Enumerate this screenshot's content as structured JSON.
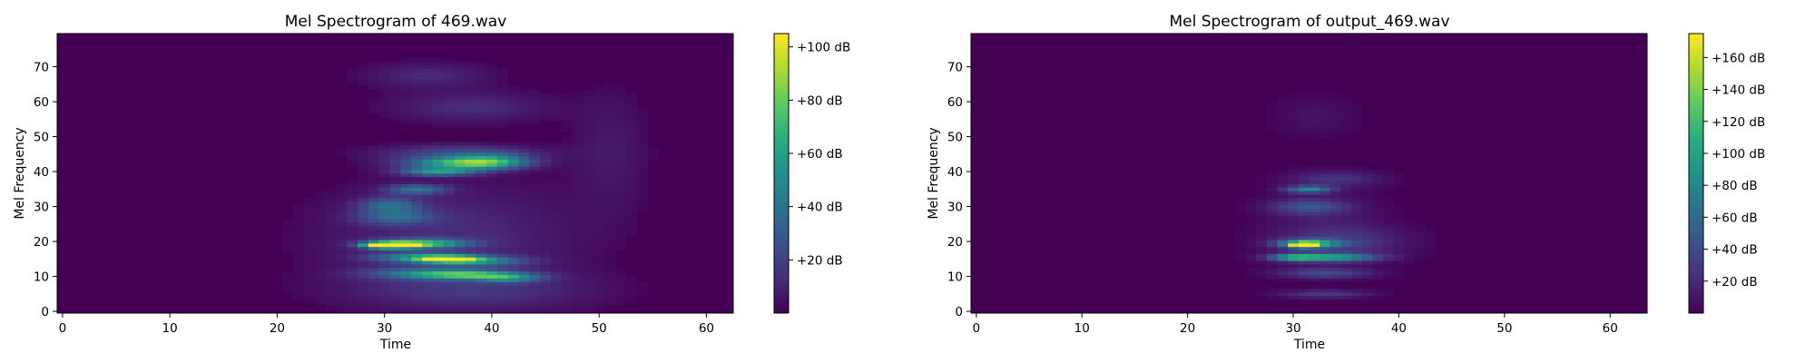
{
  "chart_data": [
    {
      "type": "heatmap",
      "title": "Mel Spectrogram of 469.wav",
      "xlabel": "Time",
      "ylabel": "Mel Frequency",
      "xlim": [
        -0.5,
        62.5
      ],
      "ylim": [
        -0.5,
        79.5
      ],
      "xticks": [
        "0",
        "10",
        "20",
        "30",
        "40",
        "50",
        "60"
      ],
      "yticks": [
        "0",
        "10",
        "20",
        "30",
        "40",
        "50",
        "60",
        "70"
      ],
      "colorbar": {
        "min": 0,
        "max": 105,
        "ticks": [
          "+20 dB",
          "+40 dB",
          "+60 dB",
          "+80 dB",
          "+100 dB"
        ],
        "colormap": "viridis"
      },
      "time_frames": 63,
      "mel_bins": 80,
      "blobs": [
        {
          "t": 31,
          "f": 19,
          "st": 1.6,
          "sf": 0.6,
          "v": 101
        },
        {
          "t": 33.5,
          "f": 19.5,
          "st": 3,
          "sf": 0.9,
          "v": 62
        },
        {
          "t": 29.5,
          "f": 19,
          "st": 1.2,
          "sf": 0.6,
          "v": 52
        },
        {
          "t": 36,
          "f": 15,
          "st": 2,
          "sf": 0.7,
          "v": 80
        },
        {
          "t": 33,
          "f": 15.5,
          "st": 3,
          "sf": 1,
          "v": 42
        },
        {
          "t": 39,
          "f": 14.5,
          "st": 3,
          "sf": 1,
          "v": 38
        },
        {
          "t": 38,
          "f": 10.5,
          "st": 3.5,
          "sf": 0.8,
          "v": 52
        },
        {
          "t": 34,
          "f": 11,
          "st": 4,
          "sf": 1.2,
          "v": 32
        },
        {
          "t": 41.5,
          "f": 9.5,
          "st": 2,
          "sf": 0.8,
          "v": 38
        },
        {
          "t": 37,
          "f": 42.5,
          "st": 3.5,
          "sf": 1.2,
          "v": 62
        },
        {
          "t": 40,
          "f": 43,
          "st": 2.5,
          "sf": 1.5,
          "v": 40
        },
        {
          "t": 35,
          "f": 40,
          "st": 2.5,
          "sf": 0.8,
          "v": 52
        },
        {
          "t": 33,
          "f": 35,
          "st": 2,
          "sf": 1,
          "v": 36
        },
        {
          "t": 30.5,
          "f": 30.5,
          "st": 2,
          "sf": 1.5,
          "v": 32
        },
        {
          "t": 31,
          "f": 27,
          "st": 2.5,
          "sf": 1.5,
          "v": 28
        },
        {
          "t": 37,
          "f": 45.5,
          "st": 5,
          "sf": 1.5,
          "v": 22
        },
        {
          "t": 38,
          "f": 58.5,
          "st": 5,
          "sf": 3,
          "v": 13
        },
        {
          "t": 34,
          "f": 67.5,
          "st": 4,
          "sf": 2.5,
          "v": 12
        },
        {
          "t": 36,
          "f": 22,
          "st": 8,
          "sf": 10,
          "v": 13
        },
        {
          "t": 38,
          "f": 6,
          "st": 8,
          "sf": 4,
          "v": 14
        },
        {
          "t": 51,
          "f": 46,
          "st": 2.5,
          "sf": 12,
          "v": 7
        }
      ]
    },
    {
      "type": "heatmap",
      "title": "Mel Spectrogram of output_469.wav",
      "xlabel": "Time",
      "ylabel": "Mel Frequency",
      "xlim": [
        -0.5,
        63.5
      ],
      "ylim": [
        -0.5,
        79.5
      ],
      "xticks": [
        "0",
        "10",
        "20",
        "30",
        "40",
        "50",
        "60"
      ],
      "yticks": [
        "0",
        "10",
        "20",
        "30",
        "40",
        "50",
        "60",
        "70"
      ],
      "colorbar": {
        "min": 0,
        "max": 175,
        "ticks": [
          "+20 dB",
          "+40 dB",
          "+60 dB",
          "+80 dB",
          "+100 dB",
          "+120 dB",
          "+140 dB",
          "+160 dB"
        ],
        "colormap": "viridis"
      },
      "time_frames": 64,
      "mel_bins": 80,
      "blobs": [
        {
          "t": 31,
          "f": 19,
          "st": 0.8,
          "sf": 0.5,
          "v": 172
        },
        {
          "t": 31.5,
          "f": 19.5,
          "st": 2,
          "sf": 0.8,
          "v": 110
        },
        {
          "t": 33.5,
          "f": 15.5,
          "st": 3,
          "sf": 0.8,
          "v": 95
        },
        {
          "t": 30,
          "f": 15.5,
          "st": 1.5,
          "sf": 0.7,
          "v": 70
        },
        {
          "t": 31.5,
          "f": 35,
          "st": 1.5,
          "sf": 0.7,
          "v": 78
        },
        {
          "t": 31.5,
          "f": 30,
          "st": 2.5,
          "sf": 1.5,
          "v": 40
        },
        {
          "t": 33,
          "f": 11,
          "st": 3,
          "sf": 1,
          "v": 38
        },
        {
          "t": 33,
          "f": 5,
          "st": 3,
          "sf": 0.8,
          "v": 28
        },
        {
          "t": 34,
          "f": 38,
          "st": 3,
          "sf": 1.5,
          "v": 24
        },
        {
          "t": 35,
          "f": 20,
          "st": 4,
          "sf": 3,
          "v": 22
        },
        {
          "t": 33,
          "f": 24,
          "st": 4,
          "sf": 8,
          "v": 12
        },
        {
          "t": 32,
          "f": 56,
          "st": 3,
          "sf": 4,
          "v": 8
        }
      ]
    }
  ]
}
